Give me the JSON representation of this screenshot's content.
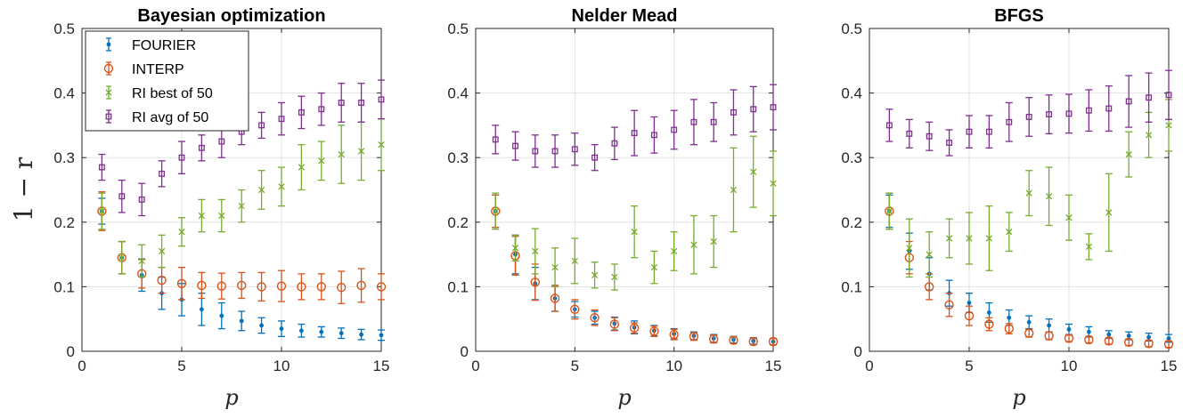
{
  "figure_ylabel": "1 − r",
  "legend": [
    {
      "label": "FOURIER",
      "series_key": "fourier"
    },
    {
      "label": "INTERP",
      "series_key": "interp"
    },
    {
      "label": "RI best of 50",
      "series_key": "ri_best"
    },
    {
      "label": "RI avg of 50",
      "series_key": "ri_avg"
    }
  ],
  "series_style": {
    "fourier": {
      "color": "#0072BD",
      "marker": "dot"
    },
    "interp": {
      "color": "#D95319",
      "marker": "circle"
    },
    "ri_best": {
      "color": "#77AC30",
      "marker": "x"
    },
    "ri_avg": {
      "color": "#7E2F8E",
      "marker": "square"
    }
  },
  "chart_data": [
    {
      "type": "scatter",
      "title": "Bayesian optimization",
      "xlabel": "p",
      "ylabel": "1 − r",
      "xlim": [
        0,
        15
      ],
      "ylim": [
        0,
        0.5
      ],
      "xticks": [
        0,
        5,
        10,
        15
      ],
      "yticks": [
        0,
        0.1,
        0.2,
        0.3,
        0.4,
        0.5
      ],
      "grid": true,
      "legend_position": "top-left",
      "x": [
        1,
        2,
        3,
        4,
        5,
        6,
        7,
        8,
        9,
        10,
        11,
        12,
        13,
        14,
        15
      ],
      "series": [
        {
          "key": "fourier",
          "values": [
            0.217,
            0.145,
            0.118,
            0.09,
            0.08,
            0.065,
            0.055,
            0.047,
            0.04,
            0.035,
            0.032,
            0.03,
            0.028,
            0.026,
            0.025
          ],
          "err": [
            0.02,
            0.025,
            0.025,
            0.025,
            0.025,
            0.025,
            0.02,
            0.015,
            0.012,
            0.012,
            0.01,
            0.008,
            0.008,
            0.008,
            0.008
          ]
        },
        {
          "key": "interp",
          "values": [
            0.217,
            0.145,
            0.12,
            0.11,
            0.105,
            0.102,
            0.101,
            0.102,
            0.1,
            0.101,
            0.1,
            0.1,
            0.099,
            0.102,
            0.1
          ],
          "err": [
            0.03,
            0.025,
            0.022,
            0.02,
            0.025,
            0.02,
            0.02,
            0.02,
            0.022,
            0.024,
            0.02,
            0.02,
            0.025,
            0.026,
            0.02
          ]
        },
        {
          "key": "ri_best",
          "values": [
            0.217,
            0.145,
            0.14,
            0.155,
            0.185,
            0.21,
            0.21,
            0.225,
            0.25,
            0.255,
            0.285,
            0.295,
            0.305,
            0.31,
            0.32
          ],
          "err": [
            0.028,
            0.025,
            0.025,
            0.025,
            0.022,
            0.025,
            0.025,
            0.025,
            0.03,
            0.03,
            0.035,
            0.03,
            0.045,
            0.045,
            0.04
          ]
        },
        {
          "key": "ri_avg",
          "values": [
            0.285,
            0.24,
            0.235,
            0.275,
            0.3,
            0.315,
            0.325,
            0.34,
            0.35,
            0.36,
            0.37,
            0.375,
            0.385,
            0.385,
            0.39
          ],
          "err": [
            0.02,
            0.025,
            0.025,
            0.02,
            0.025,
            0.02,
            0.025,
            0.02,
            0.02,
            0.025,
            0.025,
            0.025,
            0.03,
            0.03,
            0.03
          ]
        }
      ]
    },
    {
      "type": "scatter",
      "title": "Nelder Mead",
      "xlabel": "p",
      "ylabel": "",
      "xlim": [
        0,
        15
      ],
      "ylim": [
        0,
        0.5
      ],
      "xticks": [
        0,
        5,
        10,
        15
      ],
      "yticks": [
        0,
        0.1,
        0.2,
        0.3,
        0.4,
        0.5
      ],
      "grid": true,
      "legend_position": "",
      "x": [
        1,
        2,
        3,
        4,
        5,
        6,
        7,
        8,
        9,
        10,
        11,
        12,
        13,
        14,
        15
      ],
      "series": [
        {
          "key": "fourier",
          "values": [
            0.217,
            0.15,
            0.105,
            0.082,
            0.065,
            0.052,
            0.043,
            0.037,
            0.032,
            0.027,
            0.024,
            0.02,
            0.018,
            0.016,
            0.015
          ],
          "err": [
            0.025,
            0.03,
            0.025,
            0.02,
            0.012,
            0.01,
            0.01,
            0.01,
            0.008,
            0.008,
            0.006,
            0.006,
            0.005,
            0.005,
            0.005
          ]
        },
        {
          "key": "interp",
          "values": [
            0.217,
            0.148,
            0.107,
            0.082,
            0.065,
            0.052,
            0.042,
            0.036,
            0.031,
            0.026,
            0.023,
            0.019,
            0.017,
            0.015,
            0.015
          ],
          "err": [
            0.025,
            0.03,
            0.028,
            0.02,
            0.015,
            0.012,
            0.01,
            0.008,
            0.008,
            0.008,
            0.006,
            0.006,
            0.005,
            0.005,
            0.005
          ]
        },
        {
          "key": "ri_best",
          "values": [
            0.217,
            0.16,
            0.155,
            0.13,
            0.14,
            0.118,
            0.115,
            0.185,
            0.13,
            0.155,
            0.165,
            0.17,
            0.25,
            0.278,
            0.26
          ],
          "err": [
            0.028,
            0.02,
            0.035,
            0.03,
            0.035,
            0.02,
            0.02,
            0.04,
            0.025,
            0.03,
            0.045,
            0.04,
            0.065,
            0.055,
            0.05
          ]
        },
        {
          "key": "ri_avg",
          "values": [
            0.328,
            0.318,
            0.31,
            0.31,
            0.313,
            0.3,
            0.322,
            0.338,
            0.335,
            0.343,
            0.355,
            0.355,
            0.37,
            0.375,
            0.378
          ],
          "err": [
            0.022,
            0.022,
            0.025,
            0.025,
            0.025,
            0.02,
            0.025,
            0.035,
            0.028,
            0.03,
            0.035,
            0.03,
            0.035,
            0.035,
            0.035
          ]
        }
      ]
    },
    {
      "type": "scatter",
      "title": "BFGS",
      "xlabel": "p",
      "ylabel": "",
      "xlim": [
        0,
        15
      ],
      "ylim": [
        0,
        0.5
      ],
      "xticks": [
        0,
        5,
        10,
        15
      ],
      "yticks": [
        0,
        0.1,
        0.2,
        0.3,
        0.4,
        0.5
      ],
      "grid": true,
      "legend_position": "",
      "x": [
        1,
        2,
        3,
        4,
        5,
        6,
        7,
        8,
        9,
        10,
        11,
        12,
        13,
        14,
        15
      ],
      "series": [
        {
          "key": "fourier",
          "values": [
            0.217,
            0.155,
            0.12,
            0.09,
            0.075,
            0.06,
            0.052,
            0.045,
            0.04,
            0.034,
            0.03,
            0.026,
            0.024,
            0.022,
            0.02
          ],
          "err": [
            0.025,
            0.028,
            0.025,
            0.02,
            0.015,
            0.015,
            0.012,
            0.01,
            0.01,
            0.008,
            0.008,
            0.006,
            0.006,
            0.006,
            0.006
          ]
        },
        {
          "key": "interp",
          "values": [
            0.217,
            0.145,
            0.1,
            0.072,
            0.055,
            0.042,
            0.035,
            0.028,
            0.024,
            0.02,
            0.018,
            0.016,
            0.014,
            0.012,
            0.011
          ],
          "err": [
            0.028,
            0.025,
            0.02,
            0.018,
            0.015,
            0.01,
            0.008,
            0.006,
            0.006,
            0.005,
            0.005,
            0.005,
            0.005,
            0.005,
            0.005
          ]
        },
        {
          "key": "ri_best",
          "values": [
            0.217,
            0.16,
            0.15,
            0.175,
            0.175,
            0.175,
            0.185,
            0.245,
            0.24,
            0.207,
            0.162,
            0.215,
            0.305,
            0.335,
            0.35
          ],
          "err": [
            0.028,
            0.045,
            0.035,
            0.03,
            0.04,
            0.05,
            0.03,
            0.035,
            0.045,
            0.035,
            0.02,
            0.06,
            0.035,
            0.035,
            0.04
          ]
        },
        {
          "key": "ri_avg",
          "values": [
            0.35,
            0.337,
            0.333,
            0.323,
            0.34,
            0.34,
            0.355,
            0.363,
            0.367,
            0.368,
            0.373,
            0.376,
            0.387,
            0.393,
            0.397
          ],
          "err": [
            0.025,
            0.022,
            0.022,
            0.02,
            0.025,
            0.025,
            0.03,
            0.03,
            0.03,
            0.03,
            0.032,
            0.035,
            0.04,
            0.038,
            0.038
          ]
        }
      ]
    }
  ]
}
